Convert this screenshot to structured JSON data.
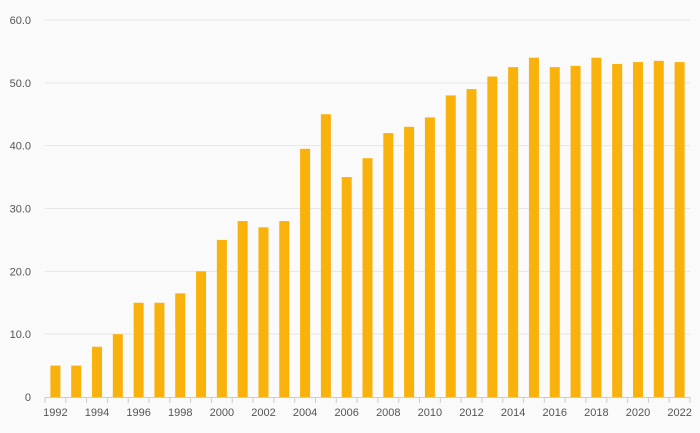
{
  "chart_data": {
    "type": "bar",
    "title": "",
    "xlabel": "",
    "ylabel": "",
    "ylim": [
      0,
      60
    ],
    "y_ticks": [
      "0",
      "10.0",
      "20.0",
      "30.0",
      "40.0",
      "50.0",
      "60.0"
    ],
    "y_tick_values": [
      0,
      10,
      20,
      30,
      40,
      50,
      60
    ],
    "x_tick_labels": [
      "1992",
      "1994",
      "1996",
      "1998",
      "2000",
      "2002",
      "2004",
      "2006",
      "2008",
      "2010",
      "2012",
      "2014",
      "2016",
      "2018",
      "2020",
      "2022"
    ],
    "categories": [
      "1992",
      "1993",
      "1994",
      "1995",
      "1996",
      "1997",
      "1998",
      "1999",
      "2000",
      "2001",
      "2002",
      "2003",
      "2004",
      "2005",
      "2006",
      "2007",
      "2008",
      "2009",
      "2010",
      "2011",
      "2012",
      "2013",
      "2014",
      "2015",
      "2016",
      "2017",
      "2018",
      "2019",
      "2020",
      "2021",
      "2022"
    ],
    "values": [
      5,
      5,
      8,
      10,
      15,
      15,
      16.5,
      20,
      25,
      28,
      27,
      28,
      39.5,
      45,
      35,
      38,
      42,
      43,
      44.5,
      48,
      49,
      51,
      52.5,
      54,
      52.5,
      52.7,
      54,
      53,
      53.3,
      53.5,
      53.3
    ],
    "grid": true,
    "bar_color": "#f9b10b"
  }
}
